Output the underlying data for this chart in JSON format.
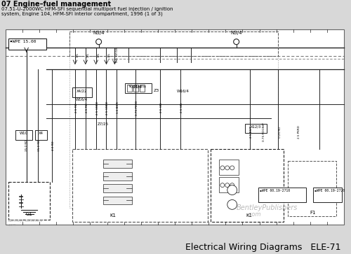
{
  "title_line1": "07 Engine–fuel management",
  "title_line2": "07.51-U-2000WC HFM-SFI sequential multiport fuel injection / ignition",
  "title_line3": "system, Engine 104, HFM-SFI interior compartment, 1996 (1 of 3)",
  "footer_right": "Electrical Wiring Diagrams   ELE-71",
  "bg_color": "#d8d8d8",
  "diagram_bg": "#ffffff",
  "line_color": "#222222",
  "dashed_color": "#555555",
  "figsize": [
    5.0,
    3.63
  ],
  "dpi": 100,
  "title_fontsize": 7,
  "subtitle_fontsize": 5,
  "footer_fontsize": 9
}
